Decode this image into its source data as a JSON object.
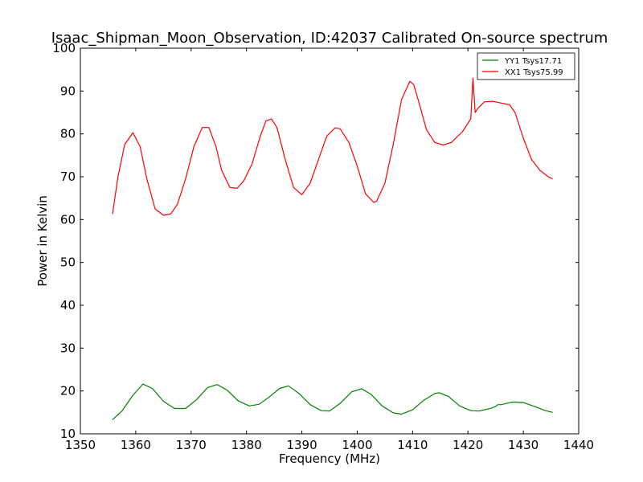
{
  "chart_data": {
    "type": "line",
    "title": "Isaac_Shipman_Moon_Observation, ID:42037 Calibrated On-source spectrum",
    "xlabel": "Frequency (MHz)",
    "ylabel": "Power in Kelvin",
    "xlim": [
      1350,
      1440
    ],
    "ylim": [
      10,
      100
    ],
    "xticks": [
      1350,
      1360,
      1370,
      1380,
      1390,
      1400,
      1410,
      1420,
      1430,
      1440
    ],
    "yticks": [
      10,
      20,
      30,
      40,
      50,
      60,
      70,
      80,
      90,
      100
    ],
    "grid": false,
    "legend_position": "top-right",
    "series": [
      {
        "name": "YY1 Tsys17.71",
        "color": "#008000",
        "x": [
          1355.8,
          1357.5,
          1359.5,
          1361.3,
          1363.0,
          1365.0,
          1367.0,
          1369.0,
          1371.0,
          1373.0,
          1374.7,
          1376.5,
          1378.5,
          1380.5,
          1382.3,
          1384.0,
          1386.0,
          1387.6,
          1389.5,
          1391.5,
          1393.5,
          1395.0,
          1397.0,
          1399.0,
          1400.8,
          1402.5,
          1404.5,
          1406.5,
          1408.0,
          1410.0,
          1412.0,
          1414.0,
          1414.8,
          1416.5,
          1418.5,
          1420.5,
          1422.0,
          1424.0,
          1425.0,
          1425.4,
          1426.0,
          1428.0,
          1430.0,
          1432.0,
          1434.0,
          1435.3
        ],
        "values": [
          13.3,
          15.3,
          19.0,
          21.6,
          20.6,
          17.6,
          15.9,
          15.9,
          18.0,
          20.8,
          21.5,
          20.2,
          17.7,
          16.5,
          16.9,
          18.5,
          20.6,
          21.2,
          19.4,
          16.8,
          15.4,
          15.3,
          17.2,
          19.8,
          20.5,
          19.2,
          16.5,
          14.9,
          14.6,
          15.6,
          17.8,
          19.4,
          19.6,
          18.7,
          16.5,
          15.4,
          15.3,
          15.9,
          16.4,
          16.8,
          16.8,
          17.4,
          17.3,
          16.4,
          15.4,
          15.0
        ]
      },
      {
        "name": "XX1 Tsys75.99",
        "color": "#ff0000",
        "x": [
          1355.8,
          1356.8,
          1358.0,
          1359.5,
          1360.8,
          1362.0,
          1363.5,
          1365.0,
          1366.3,
          1367.5,
          1369.0,
          1370.5,
          1372.0,
          1373.2,
          1374.5,
          1375.5,
          1377.0,
          1378.3,
          1379.5,
          1381.0,
          1382.5,
          1383.5,
          1384.5,
          1385.5,
          1387.0,
          1388.5,
          1390.0,
          1391.5,
          1393.0,
          1394.5,
          1396.0,
          1396.9,
          1398.5,
          1400.0,
          1401.5,
          1403.0,
          1403.5,
          1405.0,
          1406.5,
          1408.0,
          1409.5,
          1410.2,
          1411.0,
          1412.5,
          1414.0,
          1415.5,
          1417.0,
          1419.0,
          1420.5,
          1420.9,
          1421.3,
          1421.8,
          1423.0,
          1424.5,
          1426.0,
          1427.5,
          1428.5,
          1430.0,
          1431.5,
          1433.0,
          1434.5,
          1435.3
        ],
        "values": [
          61.3,
          70.0,
          77.5,
          80.3,
          77.0,
          69.5,
          62.5,
          61.0,
          61.3,
          63.5,
          69.5,
          77.0,
          81.5,
          81.5,
          77.0,
          71.5,
          67.5,
          67.3,
          69.0,
          73.0,
          79.5,
          83.0,
          83.5,
          81.5,
          74.0,
          67.5,
          65.8,
          68.5,
          74.0,
          79.5,
          81.4,
          81.2,
          78.0,
          72.5,
          66.0,
          64.0,
          64.3,
          68.5,
          77.5,
          88.0,
          92.3,
          91.5,
          88.0,
          81.0,
          78.0,
          77.4,
          78.0,
          80.5,
          83.5,
          93.0,
          85.0,
          86.0,
          87.5,
          87.6,
          87.2,
          86.8,
          85.0,
          79.0,
          74.0,
          71.5,
          70.0,
          69.5
        ]
      }
    ]
  }
}
